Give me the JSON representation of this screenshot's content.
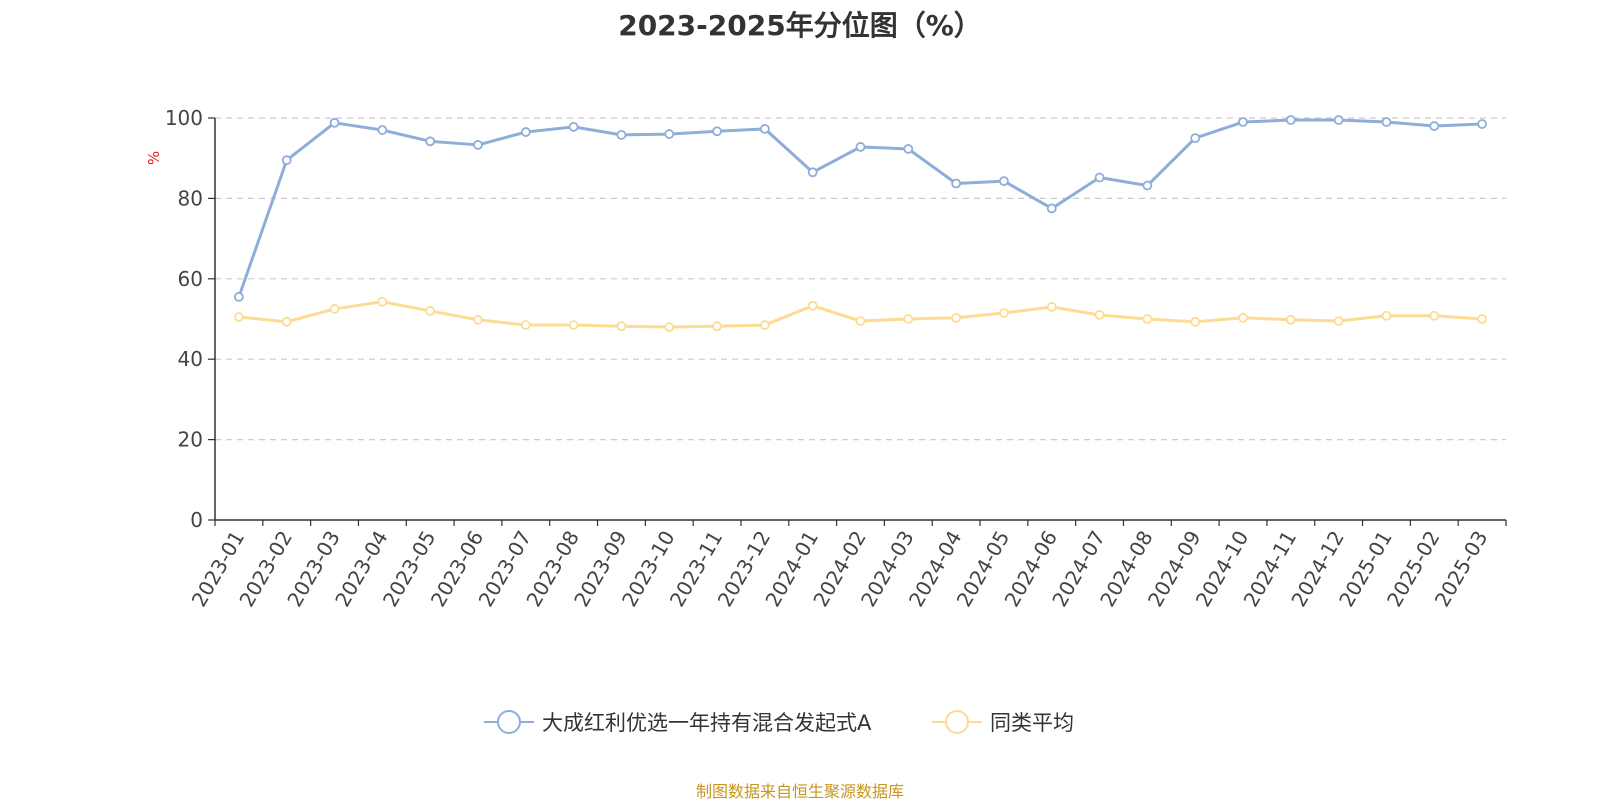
{
  "title": "2023-2025年分位图（%）",
  "source_note": "制图数据来自恒生聚源数据库",
  "colors": {
    "fund": "#8eadd8",
    "peer": "#fddb92",
    "ylabel": "#e02020",
    "grid": "#cccccc",
    "source": "#c8961e"
  },
  "chart_data": {
    "type": "line",
    "title": "2023-2025年分位图（%）",
    "xlabel": "",
    "ylabel": "%",
    "ylim": [
      0,
      100
    ],
    "yticks": [
      0,
      20,
      40,
      60,
      80,
      100
    ],
    "grid": true,
    "legend_position": "bottom",
    "categories": [
      "2023-01",
      "2023-02",
      "2023-03",
      "2023-04",
      "2023-05",
      "2023-06",
      "2023-07",
      "2023-08",
      "2023-09",
      "2023-10",
      "2023-11",
      "2023-12",
      "2024-01",
      "2024-02",
      "2024-03",
      "2024-04",
      "2024-05",
      "2024-06",
      "2024-07",
      "2024-08",
      "2024-09",
      "2024-10",
      "2024-11",
      "2024-12",
      "2025-01",
      "2025-02",
      "2025-03"
    ],
    "series": [
      {
        "name": "大成红利优选一年持有混合发起式A",
        "color": "#8eadd8",
        "values": [
          55.5,
          89.5,
          98.8,
          97.0,
          94.2,
          93.3,
          96.5,
          97.8,
          95.8,
          96.0,
          96.7,
          97.3,
          86.5,
          92.8,
          92.3,
          83.7,
          84.3,
          77.5,
          85.2,
          83.2,
          95.0,
          99.0,
          99.5,
          99.5,
          99.0,
          98.0,
          98.5
        ]
      },
      {
        "name": "同类平均",
        "color": "#fddb92",
        "values": [
          50.5,
          49.3,
          52.5,
          54.3,
          52.0,
          49.8,
          48.5,
          48.5,
          48.2,
          48.0,
          48.2,
          48.5,
          53.3,
          49.5,
          50.0,
          50.3,
          51.5,
          53.0,
          51.0,
          50.0,
          49.3,
          50.3,
          49.8,
          49.5,
          50.8,
          50.8,
          50.0
        ]
      }
    ]
  }
}
